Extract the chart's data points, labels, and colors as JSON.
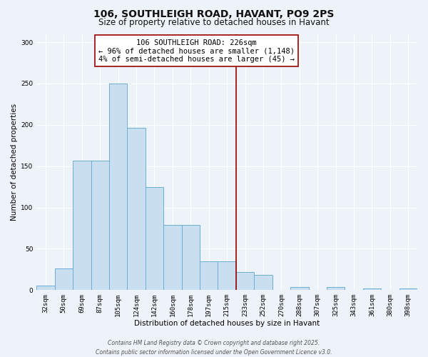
{
  "title": "106, SOUTHLEIGH ROAD, HAVANT, PO9 2PS",
  "subtitle": "Size of property relative to detached houses in Havant",
  "xlabel": "Distribution of detached houses by size in Havant",
  "ylabel": "Number of detached properties",
  "bar_labels": [
    "32sqm",
    "50sqm",
    "69sqm",
    "87sqm",
    "105sqm",
    "124sqm",
    "142sqm",
    "160sqm",
    "178sqm",
    "197sqm",
    "215sqm",
    "233sqm",
    "252sqm",
    "270sqm",
    "288sqm",
    "307sqm",
    "325sqm",
    "343sqm",
    "361sqm",
    "380sqm",
    "398sqm"
  ],
  "bar_values": [
    5,
    26,
    157,
    157,
    250,
    196,
    125,
    79,
    79,
    35,
    35,
    22,
    18,
    0,
    4,
    0,
    4,
    0,
    2,
    0,
    2
  ],
  "bar_color": "#c9dff0",
  "bar_edge_color": "#6aaed6",
  "vline_x": 10.5,
  "vline_color": "#9b0000",
  "annotation_title": "106 SOUTHLEIGH ROAD: 226sqm",
  "annotation_line1": "← 96% of detached houses are smaller (1,148)",
  "annotation_line2": "4% of semi-detached houses are larger (45) →",
  "ylim": [
    0,
    310
  ],
  "yticks": [
    0,
    50,
    100,
    150,
    200,
    250,
    300
  ],
  "footer_line1": "Contains HM Land Registry data © Crown copyright and database right 2025.",
  "footer_line2": "Contains public sector information licensed under the Open Government Licence v3.0.",
  "bg_color": "#eef2f9",
  "grid_color": "#ffffff",
  "title_fontsize": 10,
  "subtitle_fontsize": 8.5,
  "axis_label_fontsize": 7.5,
  "tick_fontsize": 6.5,
  "annotation_fontsize": 7.5,
  "footer_fontsize": 5.5
}
